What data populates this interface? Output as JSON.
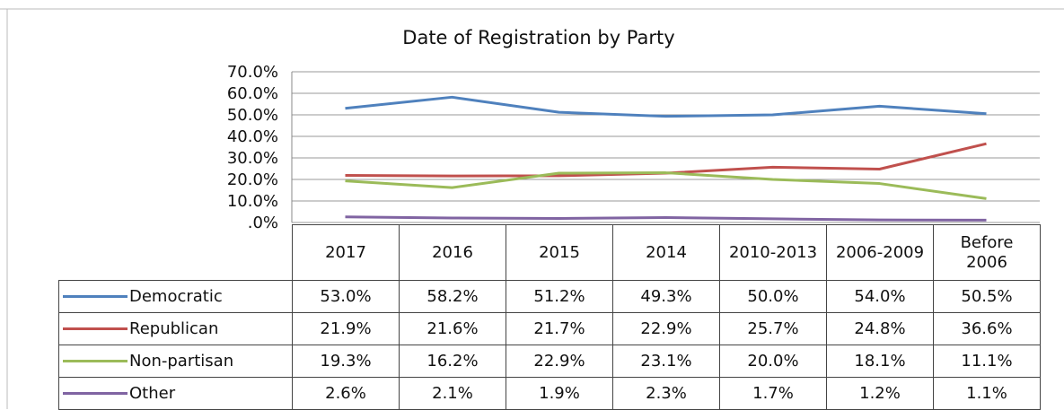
{
  "chart_data": {
    "type": "line",
    "title": "Date of Registration by Party",
    "categories": [
      "2017",
      "2016",
      "2015",
      "2014",
      "2010-2013",
      "2006-2009",
      "Before 2006"
    ],
    "ylim": [
      0,
      70
    ],
    "yticks": [
      {
        "value": 0,
        "label": ".0%"
      },
      {
        "value": 10,
        "label": "10.0%"
      },
      {
        "value": 20,
        "label": "20.0%"
      },
      {
        "value": 30,
        "label": "30.0%"
      },
      {
        "value": 40,
        "label": "40.0%"
      },
      {
        "value": 50,
        "label": "50.0%"
      },
      {
        "value": 60,
        "label": "60.0%"
      },
      {
        "value": 70,
        "label": "70.0%"
      }
    ],
    "grid": true,
    "series": [
      {
        "name": "Democratic",
        "color": "#4f81bd",
        "values": [
          53.0,
          58.2,
          51.2,
          49.3,
          50.0,
          54.0,
          50.5
        ],
        "value_labels": [
          "53.0%",
          "58.2%",
          "51.2%",
          "49.3%",
          "50.0%",
          "54.0%",
          "50.5%"
        ]
      },
      {
        "name": "Republican",
        "color": "#c0504d",
        "values": [
          21.9,
          21.6,
          21.7,
          22.9,
          25.7,
          24.8,
          36.6
        ],
        "value_labels": [
          "21.9%",
          "21.6%",
          "21.7%",
          "22.9%",
          "25.7%",
          "24.8%",
          "36.6%"
        ]
      },
      {
        "name": "Non-partisan",
        "color": "#9bbb59",
        "values": [
          19.3,
          16.2,
          22.9,
          23.1,
          20.0,
          18.1,
          11.1
        ],
        "value_labels": [
          "19.3%",
          "16.2%",
          "22.9%",
          "23.1%",
          "20.0%",
          "18.1%",
          "11.1%"
        ]
      },
      {
        "name": "Other",
        "color": "#8064a2",
        "values": [
          2.6,
          2.1,
          1.9,
          2.3,
          1.7,
          1.2,
          1.1
        ],
        "value_labels": [
          "2.6%",
          "2.1%",
          "1.9%",
          "2.3%",
          "1.7%",
          "1.2%",
          "1.1%"
        ]
      }
    ]
  }
}
